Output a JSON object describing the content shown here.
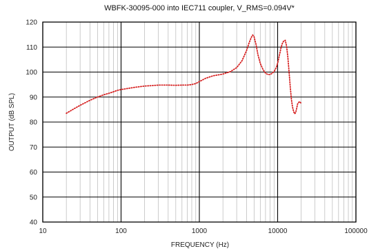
{
  "chart_data": {
    "type": "line",
    "title": "WBFK-30095-000 into IEC711 coupler, V_RMS=0.094V*",
    "xlabel": "FREQUENCY (Hz)",
    "ylabel": "OUTPUT (dB SPL)",
    "x_scale": "log",
    "xlim": [
      10,
      100000
    ],
    "ylim": [
      40,
      120
    ],
    "xticks": [
      10,
      100,
      1000,
      10000,
      100000
    ],
    "xtick_labels": [
      "10",
      "100",
      "1000",
      "10000",
      "100000"
    ],
    "yticks": [
      40,
      50,
      60,
      70,
      80,
      90,
      100,
      110,
      120
    ],
    "ytick_labels": [
      "40",
      "50",
      "60",
      "70",
      "80",
      "90",
      "100",
      "110",
      "120"
    ],
    "grid": true,
    "legend": "none",
    "series": [
      {
        "color": "#d62020",
        "line_style": "dotted",
        "x": [
          20,
          25,
          30,
          40,
          50,
          60,
          70,
          80,
          90,
          100,
          120,
          150,
          200,
          250,
          300,
          350,
          400,
          500,
          600,
          700,
          800,
          900,
          1000,
          1200,
          1500,
          2000,
          2500,
          3000,
          3500,
          4000,
          4300,
          4600,
          4800,
          5000,
          5300,
          5600,
          6000,
          6500,
          7000,
          7500,
          8000,
          8500,
          9000,
          9500,
          10000,
          10500,
          11000,
          11500,
          12000,
          12500,
          13000,
          13500,
          14000,
          14500,
          15000,
          15500,
          16000,
          16500,
          17000,
          17500,
          18000,
          19000,
          20000
        ],
        "y": [
          83.5,
          85.3,
          86.7,
          88.7,
          90.0,
          90.9,
          91.5,
          92.1,
          92.7,
          93.0,
          93.4,
          93.9,
          94.4,
          94.6,
          94.8,
          94.8,
          94.8,
          94.7,
          94.8,
          94.8,
          95.0,
          95.4,
          96.2,
          97.5,
          98.5,
          99.2,
          100.2,
          101.8,
          104.5,
          108.5,
          111.5,
          113.8,
          114.8,
          114.2,
          111.0,
          107.0,
          103.5,
          101.0,
          99.6,
          99.0,
          99.0,
          99.5,
          100.2,
          101.5,
          103.5,
          106.5,
          109.5,
          111.5,
          112.5,
          112.7,
          110.5,
          106.0,
          100.0,
          94.0,
          89.0,
          86.0,
          84.2,
          83.3,
          83.8,
          85.5,
          87.3,
          88.2,
          87.5
        ]
      }
    ]
  }
}
